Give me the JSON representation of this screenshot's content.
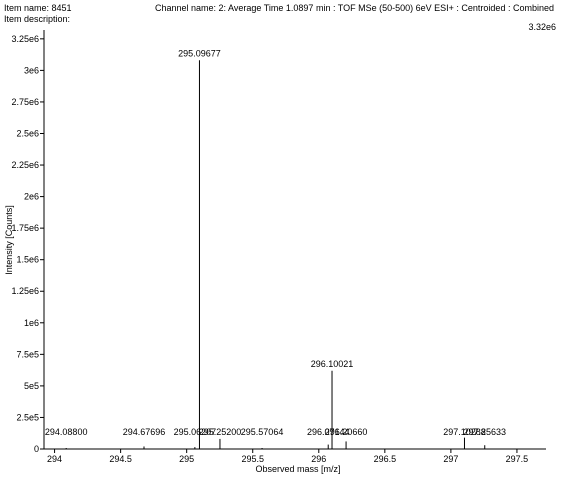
{
  "header": {
    "item_name": "Item name: 8451",
    "item_description": "Item description:",
    "channel": "Channel name: 2: Average Time 1.0897 min : TOF MSe (50-500) 6eV ESI+ : Centroided : Combined"
  },
  "chart_data": {
    "type": "bar",
    "title": "",
    "xlabel": "Observed mass [m/z]",
    "ylabel": "Intensity [Counts]",
    "max_intensity_label": "3.32e6",
    "xlim": [
      293.92,
      297.72
    ],
    "ylim": [
      0,
      3320000
    ],
    "x_ticks": [
      294,
      294.5,
      295,
      295.5,
      296,
      296.5,
      297,
      297.5
    ],
    "x_tick_labels": [
      "294",
      "294.5",
      "295",
      "295.5",
      "296",
      "296.5",
      "297",
      "297.5"
    ],
    "y_ticks": [
      0,
      250000,
      500000,
      750000,
      1000000,
      1250000,
      1500000,
      1750000,
      2000000,
      2250000,
      2500000,
      2750000,
      3000000,
      3250000
    ],
    "y_tick_labels": [
      "0",
      "2.5e5",
      "5e5",
      "7.5e5",
      "1e6",
      "1.25e6",
      "1.5e6",
      "1.75e6",
      "2e6",
      "2.25e6",
      "2.5e6",
      "2.75e6",
      "3e6",
      "3.25e6"
    ],
    "peaks": [
      {
        "mz": 294.088,
        "intensity": 8000,
        "label": "294.08800"
      },
      {
        "mz": 294.67696,
        "intensity": 20000,
        "label": "294.67696"
      },
      {
        "mz": 295.06207,
        "intensity": 15000,
        "label": "295.06207"
      },
      {
        "mz": 295.09677,
        "intensity": 3080000,
        "label": "295.09677"
      },
      {
        "mz": 295.252,
        "intensity": 80000,
        "label": "295.25200"
      },
      {
        "mz": 295.57064,
        "intensity": 8000,
        "label": "295.57064"
      },
      {
        "mz": 296.07144,
        "intensity": 35000,
        "label": "296.07144"
      },
      {
        "mz": 296.10021,
        "intensity": 620000,
        "label": "296.10021"
      },
      {
        "mz": 296.2066,
        "intensity": 60000,
        "label": "296.20660"
      },
      {
        "mz": 297.10288,
        "intensity": 90000,
        "label": "297.10288"
      },
      {
        "mz": 297.25633,
        "intensity": 30000,
        "label": "297.25633"
      }
    ],
    "grid": false,
    "colors": {
      "axis": "#000000",
      "peak": "#000000"
    }
  }
}
